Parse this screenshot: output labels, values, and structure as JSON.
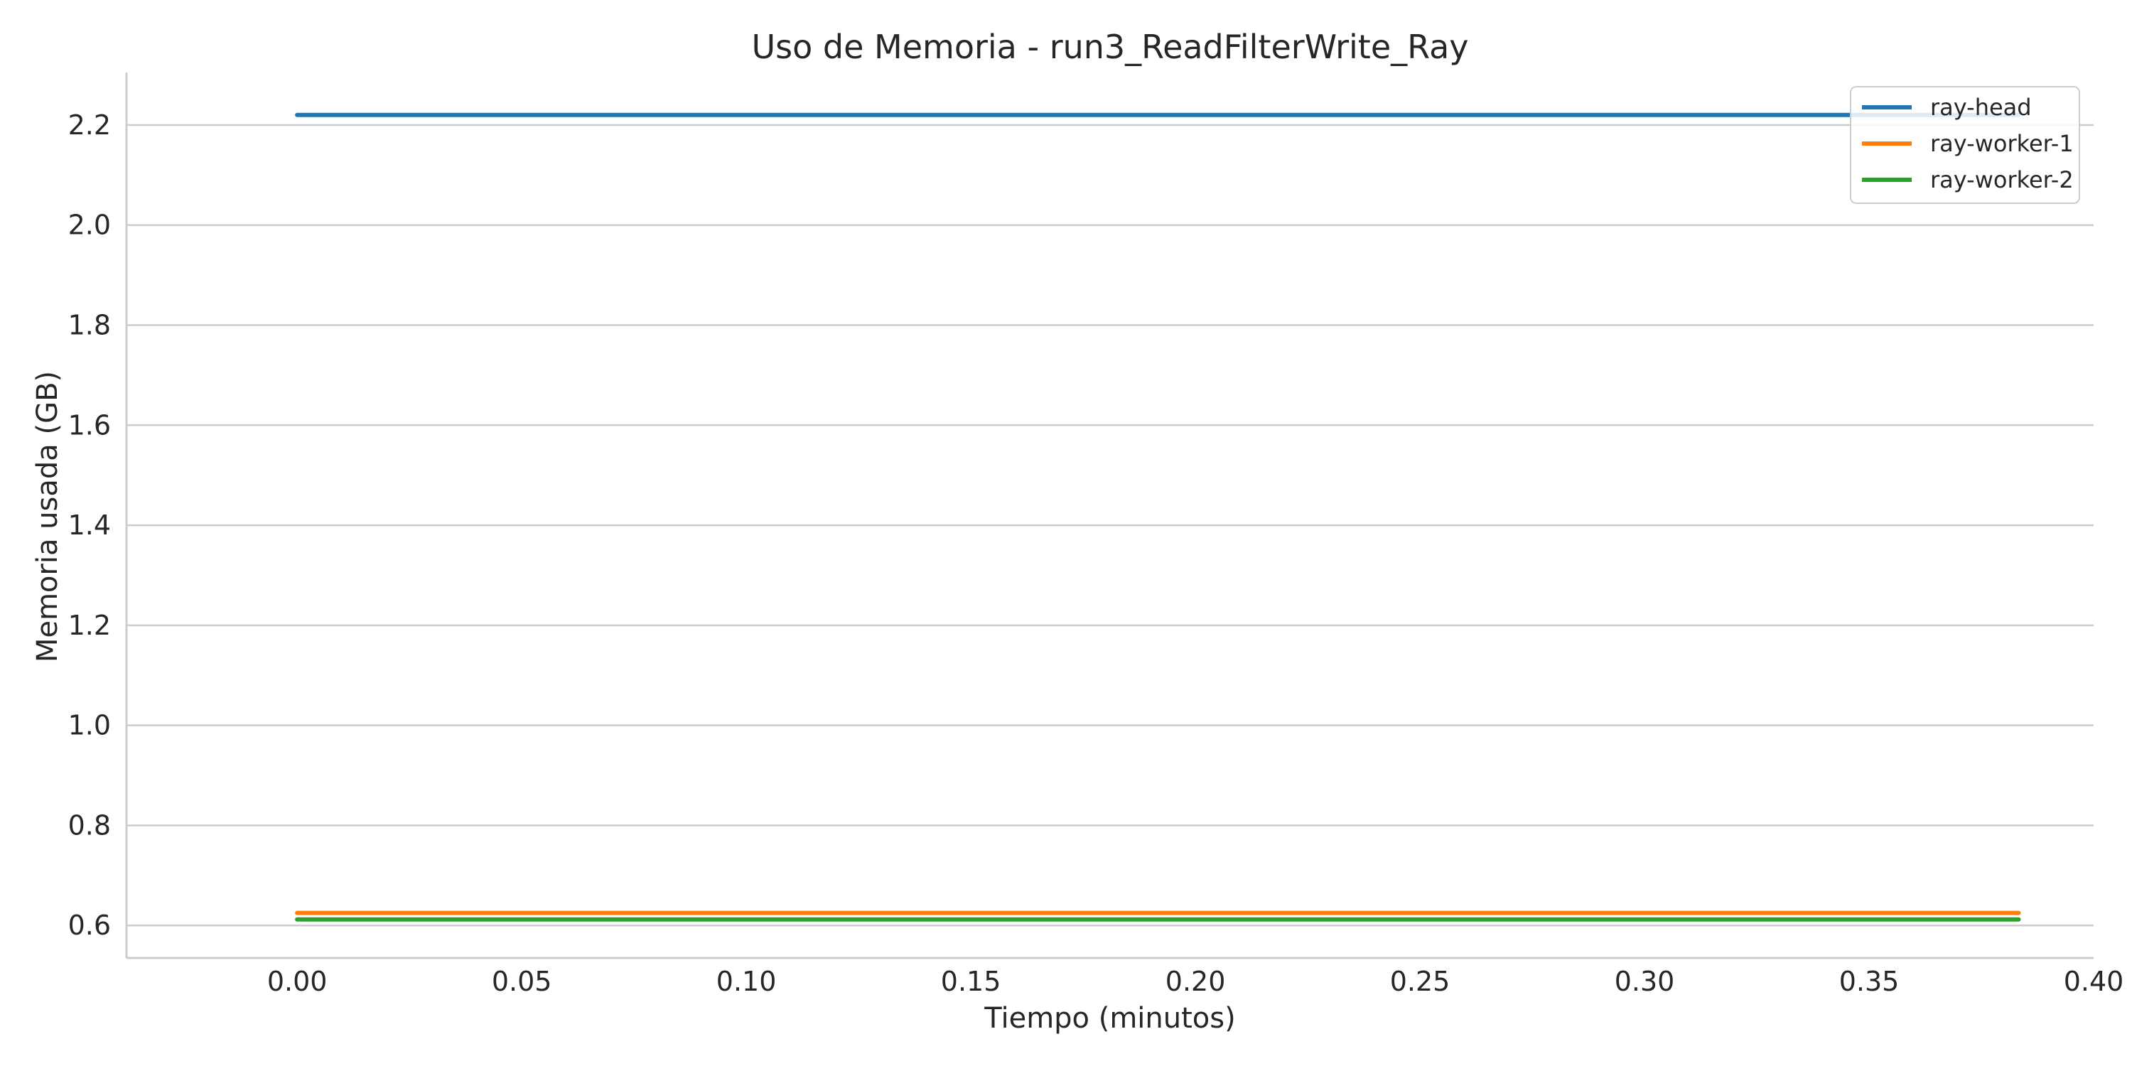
{
  "chart_data": {
    "type": "line",
    "title": "Uso de Memoria - run3_ReadFilterWrite_Ray",
    "xlabel": "Tiempo (minutos)",
    "ylabel": "Memoria usada (GB)",
    "xlim": [
      -0.038,
      0.4
    ],
    "ylim": [
      0.535,
      2.305
    ],
    "xticks": [
      0.0,
      0.05,
      0.1,
      0.15,
      0.2,
      0.25,
      0.3,
      0.35,
      0.4
    ],
    "xtick_labels": [
      "0.00",
      "0.05",
      "0.10",
      "0.15",
      "0.20",
      "0.25",
      "0.30",
      "0.35",
      "0.40"
    ],
    "yticks": [
      0.6,
      0.8,
      1.0,
      1.2,
      1.4,
      1.6,
      1.8,
      2.0,
      2.2
    ],
    "ytick_labels": [
      "0.6",
      "0.8",
      "1.0",
      "1.2",
      "1.4",
      "1.6",
      "1.8",
      "2.0",
      "2.2"
    ],
    "grid": "horizontal",
    "legend_position": "top-right",
    "series": [
      {
        "name": "ray-head",
        "color": "#1f77b4",
        "x": [
          0.0,
          0.0833,
          0.1667,
          0.25,
          0.3333,
          0.3833
        ],
        "y": [
          2.22,
          2.22,
          2.22,
          2.22,
          2.22,
          2.22
        ]
      },
      {
        "name": "ray-worker-1",
        "color": "#ff7f0e",
        "x": [
          0.0,
          0.0833,
          0.1667,
          0.25,
          0.3333,
          0.3833
        ],
        "y": [
          0.625,
          0.625,
          0.625,
          0.625,
          0.625,
          0.625
        ]
      },
      {
        "name": "ray-worker-2",
        "color": "#2ca02c",
        "x": [
          0.0,
          0.0833,
          0.1667,
          0.25,
          0.3333,
          0.3833
        ],
        "y": [
          0.612,
          0.612,
          0.612,
          0.612,
          0.612,
          0.612
        ]
      }
    ]
  }
}
